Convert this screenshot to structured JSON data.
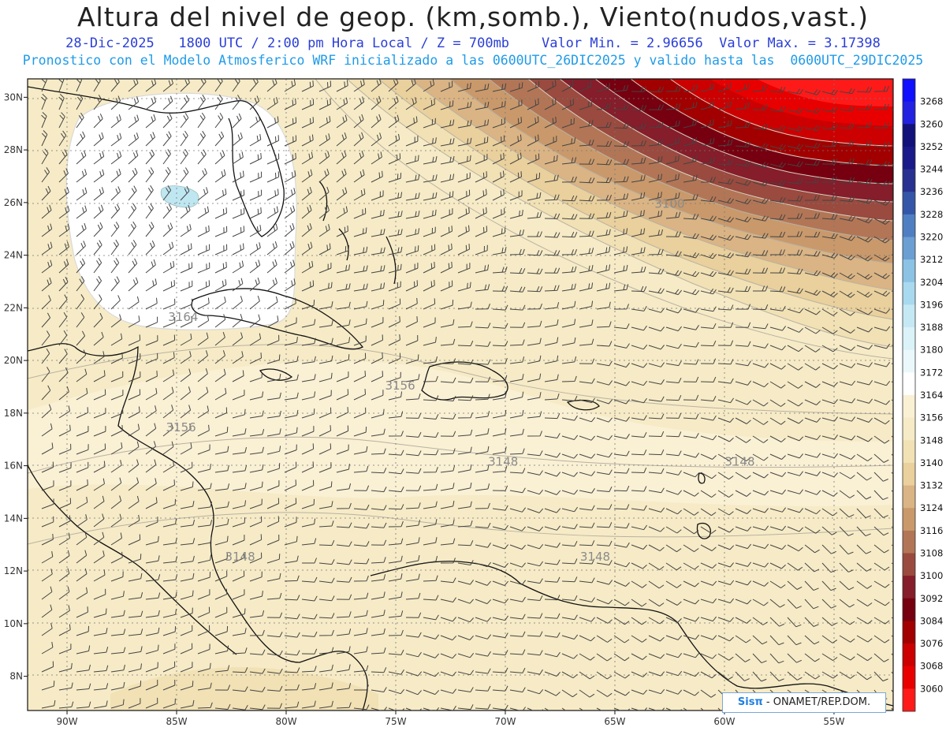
{
  "title": "Altura del nivel de geop. (km,somb.), Viento(nudos,vast.)",
  "subtitle": "28-Dic-2025   1800 UTC / 2:00 pm Hora Local / Z = 700mb    Valor Min. = 2.96656  Valor Max. = 3.17398",
  "description": "Pronostico con el Modelo Atmosferico WRF inicializado a las 0600UTC_26DIC2025 y valido hasta las  0600UTC_29DIC2025",
  "credit": {
    "brand": "Sisπ",
    "text": " - ONAMET/REP.DOM."
  },
  "map": {
    "lon_ticks": [
      "90W",
      "85W",
      "80W",
      "75W",
      "70W",
      "65W",
      "60W",
      "55W"
    ],
    "lat_ticks": [
      "30N",
      "28N",
      "26N",
      "24N",
      "22N",
      "20N",
      "18N",
      "16N",
      "14N",
      "12N",
      "10N",
      "8N"
    ],
    "contour_labels": [
      {
        "text": "3164",
        "lon": -84.7,
        "lat": 21.5
      },
      {
        "text": "3156",
        "lon": -74.8,
        "lat": 18.9
      },
      {
        "text": "3156",
        "lon": -84.8,
        "lat": 17.3
      },
      {
        "text": "3148",
        "lon": -70.1,
        "lat": 16.0
      },
      {
        "text": "3148",
        "lon": -59.3,
        "lat": 16.0
      },
      {
        "text": "3148",
        "lon": -82.1,
        "lat": 12.4
      },
      {
        "text": "3148",
        "lon": -65.9,
        "lat": 12.4
      },
      {
        "text": "3100",
        "lon": -62.5,
        "lat": 25.8
      }
    ]
  },
  "colorbar": {
    "labels": [
      "3268",
      "3260",
      "3252",
      "3244",
      "3236",
      "3228",
      "3220",
      "3212",
      "3204",
      "3196",
      "3188",
      "3180",
      "3172",
      "3164",
      "3156",
      "3148",
      "3140",
      "3132",
      "3124",
      "3116",
      "3108",
      "3100",
      "3092",
      "3084",
      "3076",
      "3068",
      "3060"
    ],
    "colors": [
      "#1010ff",
      "#2222e0",
      "#12127a",
      "#1a1a8a",
      "#28318f",
      "#3556a8",
      "#4f7fc2",
      "#6b9ed3",
      "#8cc3e4",
      "#a9d9ee",
      "#c5e9f4",
      "#daf2f8",
      "#eaf8fb",
      "#ffffff",
      "#faf0d4",
      "#f6ebc6",
      "#f1e1b4",
      "#e9d09c",
      "#dab484",
      "#c9996b",
      "#b27656",
      "#9a4a3e",
      "#851d2a",
      "#760010",
      "#a20000",
      "#cc0000",
      "#e80000",
      "#ff1a1a"
    ]
  }
}
